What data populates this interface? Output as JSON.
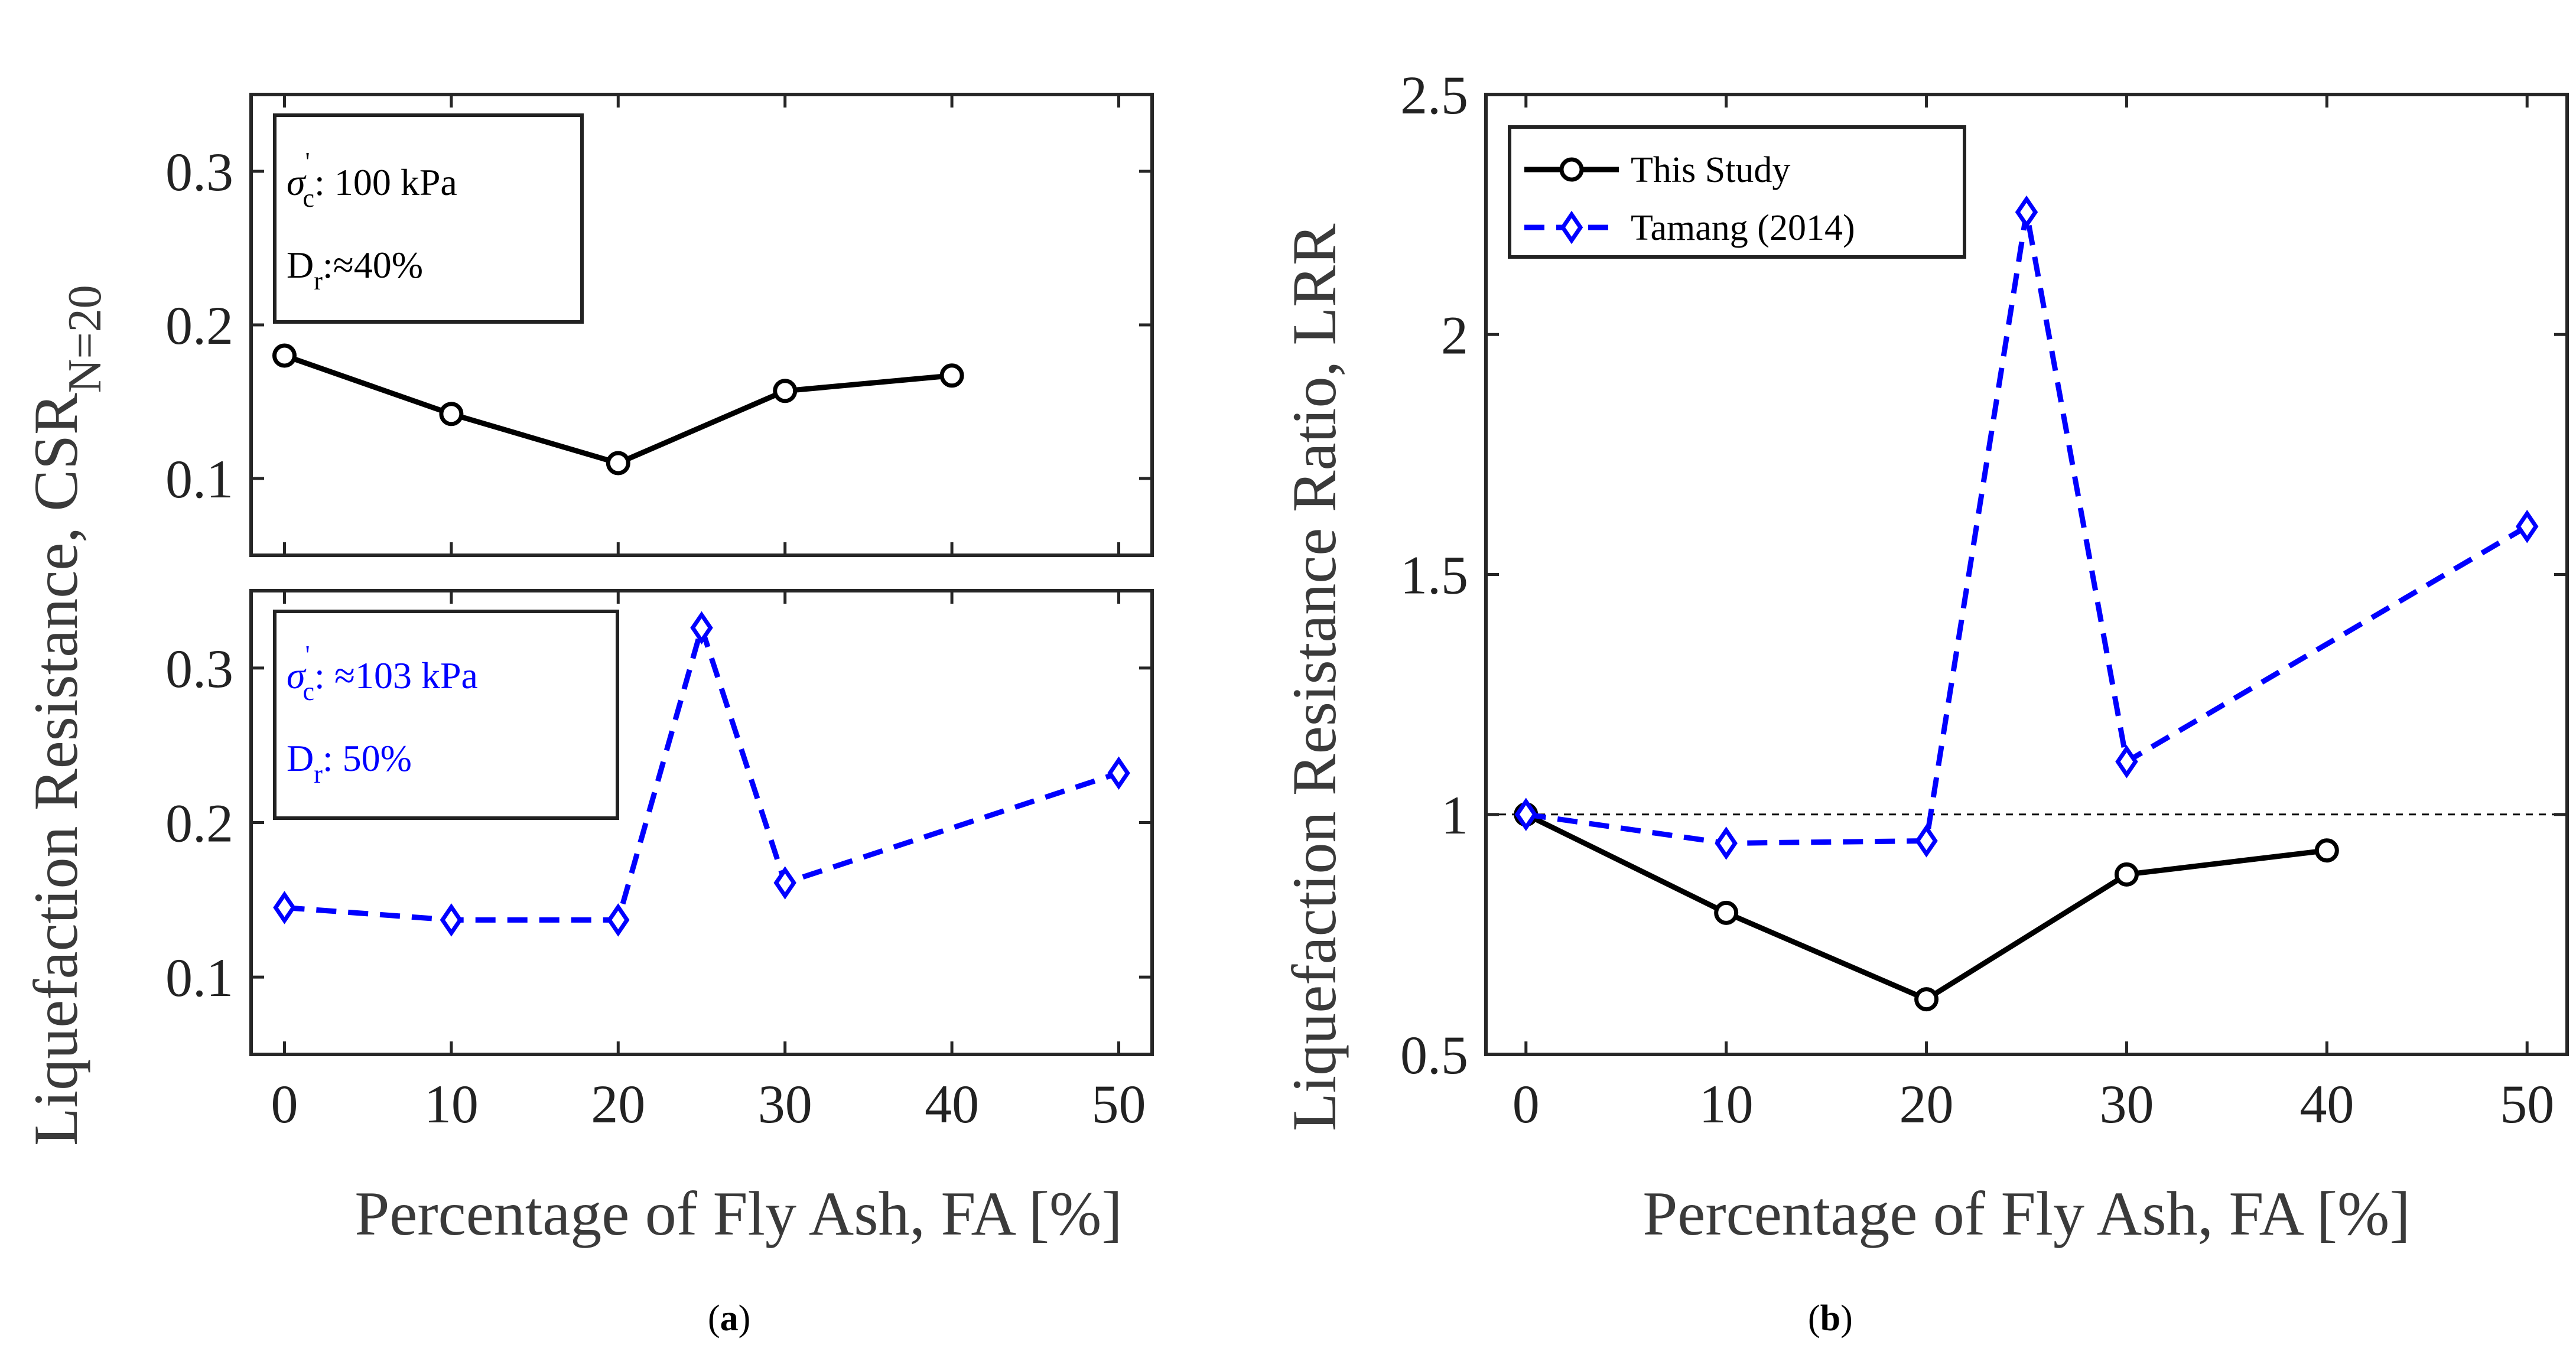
{
  "chart_data": [
    {
      "panel": "a-top",
      "type": "line",
      "x": [
        0,
        10,
        20,
        30,
        40
      ],
      "values": [
        0.18,
        0.142,
        0.11,
        0.157,
        0.167
      ],
      "series_color": "#000000",
      "marker": "circle",
      "line_style": "solid",
      "xlim": [
        -2,
        52
      ],
      "ylim": [
        0.05,
        0.35
      ],
      "yticks": [
        "0.1",
        "0.2",
        "0.3"
      ],
      "ylabel_main": "Liquefaction Resistance, CSR",
      "ylabel_sub": "N=20",
      "annotation": {
        "line1_sym": "σ",
        "line1_sup": "'",
        "line1_sub": "c",
        "line1_text": ": 100 kPa",
        "line2_main": "D",
        "line2_sub": "r",
        "line2_text": ":≈40%",
        "color": "#000000"
      }
    },
    {
      "panel": "a-bottom",
      "type": "line",
      "x": [
        0,
        10,
        20,
        25,
        30,
        50
      ],
      "values": [
        0.145,
        0.137,
        0.137,
        0.326,
        0.161,
        0.232
      ],
      "series_color": "#0000ff",
      "marker": "diamond",
      "line_style": "dashed",
      "xlim": [
        -2,
        52
      ],
      "ylim": [
        0.05,
        0.35
      ],
      "xticks": [
        "0",
        "10",
        "20",
        "30",
        "40",
        "50"
      ],
      "yticks": [
        "0.1",
        "0.2",
        "0.3"
      ],
      "xlabel": "Percentage of Fly Ash, FA [%]",
      "annotation": {
        "line1_sym": "σ",
        "line1_sup": "'",
        "line1_sub": "c",
        "line1_text": ": ≈103 kPa",
        "line2_main": "D",
        "line2_sub": "r",
        "line2_text": ": 50%",
        "color": "#0000ff"
      }
    },
    {
      "panel": "b",
      "type": "line",
      "xlim": [
        -2,
        52
      ],
      "ylim": [
        0.5,
        2.5
      ],
      "xticks": [
        "0",
        "10",
        "20",
        "30",
        "40",
        "50"
      ],
      "yticks": [
        "0.5",
        "1",
        "1.5",
        "2",
        "2.5"
      ],
      "xlabel": "Percentage of Fly Ash, FA [%]",
      "ylabel": "Liquefaction Resistance Ratio, LRR",
      "reference_line": 1,
      "legend_position": "top-left",
      "series": [
        {
          "name": "This Study",
          "x": [
            0,
            10,
            20,
            30,
            40
          ],
          "values": [
            1.0,
            0.795,
            0.615,
            0.875,
            0.925
          ],
          "color": "#000000",
          "marker": "circle",
          "line_style": "solid"
        },
        {
          "name": "Tamang (2014)",
          "x": [
            0,
            10,
            20,
            25,
            30,
            50
          ],
          "values": [
            1.0,
            0.94,
            0.945,
            2.255,
            1.11,
            1.6
          ],
          "color": "#0000ff",
          "marker": "diamond",
          "line_style": "dashed"
        }
      ]
    }
  ],
  "captions": {
    "a_open": "(",
    "a_letter": "a",
    "a_close": ")",
    "b_open": "(",
    "b_letter": "b",
    "b_close": ")"
  }
}
